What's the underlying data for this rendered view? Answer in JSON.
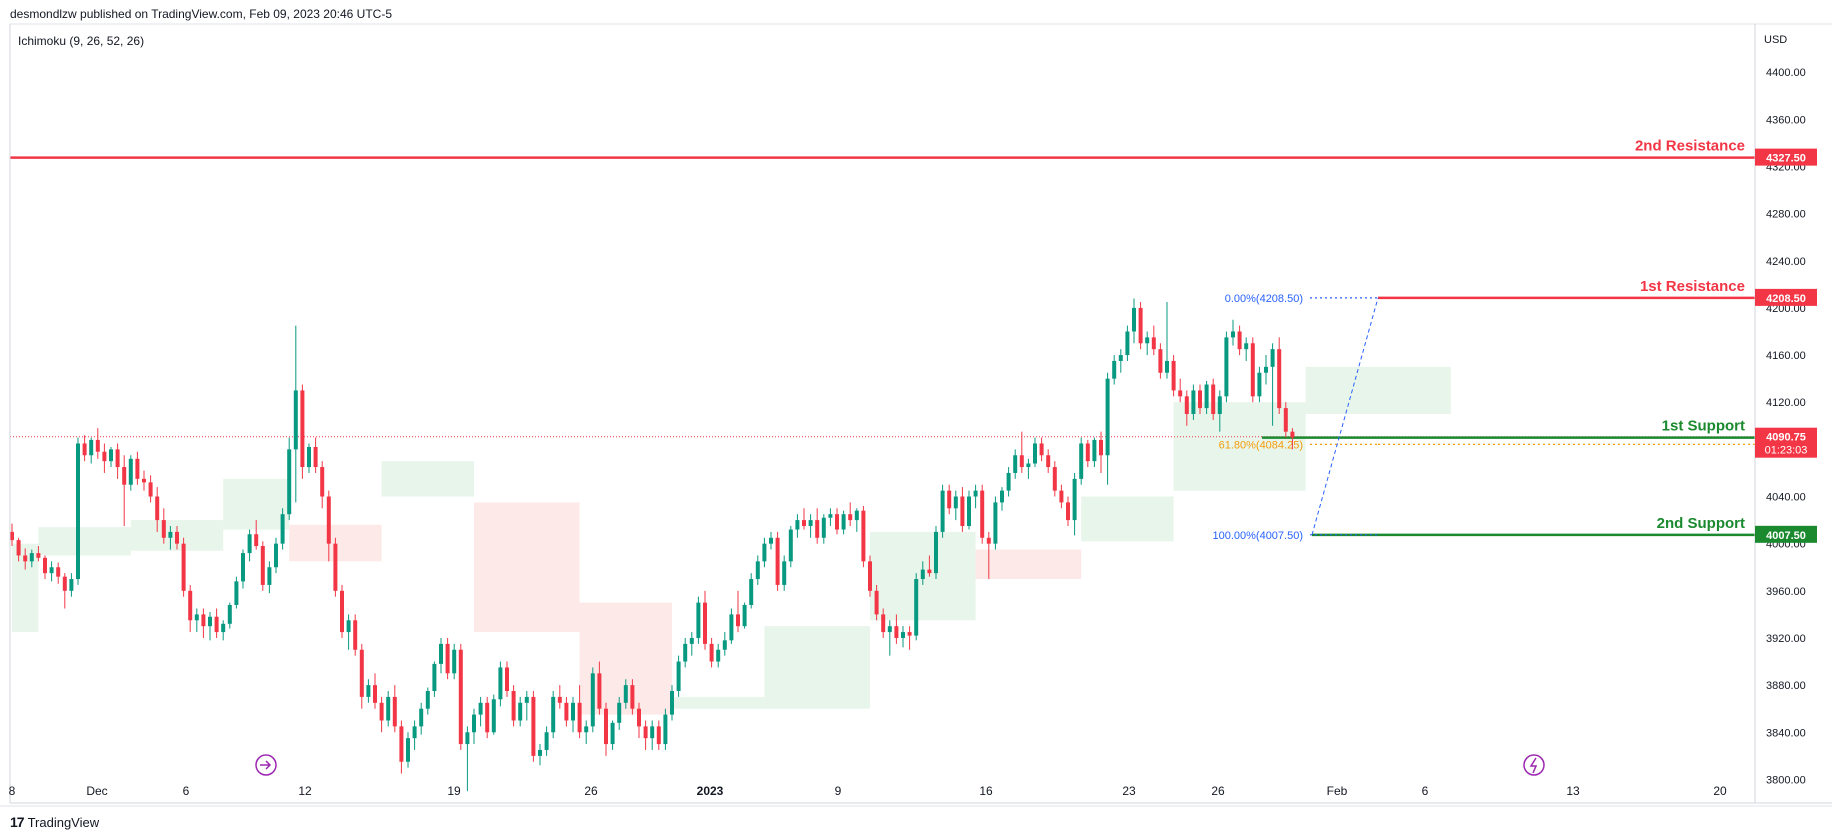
{
  "header": {
    "publisher": "desmondlzw published on TradingView.com, Feb 09, 2023 20:46 UTC-5",
    "indicator": "Ichimoku (9, 26, 52, 26)",
    "currency": "USD"
  },
  "footer": {
    "logo_mark": "17",
    "logo_text": "TradingView"
  },
  "colors": {
    "up": "#089981",
    "down": "#f23645",
    "resistance": "#f23645",
    "support": "#1b8a2f",
    "fib": "#2962ff",
    "fib_mid": "#f59d0b",
    "cloud_up": "#e4f3e6",
    "cloud_down": "#fde5e4"
  },
  "chart_data": {
    "type": "candlestick",
    "ylim": [
      3780,
      4440
    ],
    "y_ticks": [
      3800,
      3840,
      3880,
      3920,
      3960,
      4000,
      4040,
      4080,
      4120,
      4160,
      4200,
      4240,
      4280,
      4320,
      4360,
      4400
    ],
    "y_tick_labels": [
      "3800.00",
      "3840.00",
      "3880.00",
      "3920.00",
      "3960.00",
      "4000.00",
      "4040.00",
      "4080.00",
      "4120.00",
      "4160.00",
      "4200.00",
      "4240.00",
      "4280.00",
      "4320.00",
      "4360.00",
      "4400.00"
    ],
    "x_labels": [
      "8",
      "Dec",
      "6",
      "12",
      "19",
      "26",
      "2023",
      "9",
      "16",
      "23",
      "26",
      "Feb",
      "6",
      "13",
      "20"
    ],
    "levels": [
      {
        "name": "2nd Resistance",
        "value": 4327.5,
        "label": "4327.50",
        "kind": "resistance"
      },
      {
        "name": "1st Resistance",
        "value": 4208.5,
        "label": "4208.50",
        "kind": "resistance"
      },
      {
        "name": "1st Support",
        "value": 4090.0,
        "label": "4090.00",
        "kind": "support"
      },
      {
        "name": "2nd Support",
        "value": 4007.5,
        "label": "4007.50",
        "kind": "support"
      }
    ],
    "fibonacci": [
      {
        "label": "0.00%(4208.50)",
        "value": 4208.5
      },
      {
        "label": "61.80%(4084.25)",
        "value": 4084.25
      },
      {
        "label": "100.00%(4007.50)",
        "value": 4007.5
      }
    ],
    "last_price": {
      "value": 4090.75,
      "label": "4090.75",
      "countdown": "01:23:03"
    },
    "candles": [
      [
        4010,
        4017,
        3998,
        4003
      ],
      [
        4003,
        4005,
        3985,
        3990
      ],
      [
        3990,
        3996,
        3978,
        3985
      ],
      [
        3985,
        3995,
        3980,
        3992
      ],
      [
        3992,
        3998,
        3985,
        3988
      ],
      [
        3988,
        3990,
        3970,
        3975
      ],
      [
        3975,
        3985,
        3968,
        3980
      ],
      [
        3980,
        3984,
        3966,
        3972
      ],
      [
        3972,
        3975,
        3945,
        3960
      ],
      [
        3960,
        3975,
        3955,
        3970
      ],
      [
        3970,
        4090,
        3965,
        4085
      ],
      [
        4085,
        4092,
        4070,
        4075
      ],
      [
        4075,
        4090,
        4068,
        4088
      ],
      [
        4088,
        4098,
        4072,
        4078
      ],
      [
        4078,
        4085,
        4060,
        4070
      ],
      [
        4070,
        4082,
        4065,
        4080
      ],
      [
        4080,
        4085,
        4055,
        4065
      ],
      [
        4065,
        4075,
        4015,
        4050
      ],
      [
        4050,
        4075,
        4045,
        4072
      ],
      [
        4072,
        4078,
        4050,
        4055
      ],
      [
        4055,
        4062,
        4045,
        4052
      ],
      [
        4052,
        4058,
        4035,
        4040
      ],
      [
        4040,
        4048,
        4010,
        4020
      ],
      [
        4020,
        4030,
        4000,
        4005
      ],
      [
        4005,
        4015,
        3995,
        4010
      ],
      [
        4010,
        4015,
        3995,
        4000
      ],
      [
        4000,
        4005,
        3955,
        3960
      ],
      [
        3960,
        3965,
        3925,
        3935
      ],
      [
        3935,
        3945,
        3925,
        3940
      ],
      [
        3940,
        3945,
        3920,
        3930
      ],
      [
        3930,
        3942,
        3918,
        3938
      ],
      [
        3938,
        3945,
        3920,
        3925
      ],
      [
        3925,
        3935,
        3918,
        3932
      ],
      [
        3932,
        3950,
        3928,
        3948
      ],
      [
        3948,
        3972,
        3945,
        3968
      ],
      [
        3968,
        3995,
        3962,
        3992
      ],
      [
        3992,
        4012,
        3985,
        4008
      ],
      [
        4008,
        4020,
        3995,
        3998
      ],
      [
        3998,
        4002,
        3960,
        3965
      ],
      [
        3965,
        3985,
        3958,
        3980
      ],
      [
        3980,
        4005,
        3975,
        4000
      ],
      [
        4000,
        4030,
        3995,
        4025
      ],
      [
        4025,
        4090,
        4020,
        4080
      ],
      [
        4080,
        4185,
        4035,
        4130
      ],
      [
        4130,
        4135,
        4055,
        4065
      ],
      [
        4065,
        4085,
        4060,
        4082
      ],
      [
        4082,
        4090,
        4060,
        4065
      ],
      [
        4065,
        4070,
        4030,
        4040
      ],
      [
        4040,
        4045,
        3985,
        4000
      ],
      [
        4000,
        4005,
        3955,
        3960
      ],
      [
        3960,
        3965,
        3920,
        3925
      ],
      [
        3925,
        3940,
        3910,
        3935
      ],
      [
        3935,
        3940,
        3905,
        3910
      ],
      [
        3910,
        3915,
        3860,
        3870
      ],
      [
        3870,
        3885,
        3865,
        3880
      ],
      [
        3880,
        3890,
        3860,
        3865
      ],
      [
        3865,
        3870,
        3840,
        3850
      ],
      [
        3850,
        3875,
        3845,
        3870
      ],
      [
        3870,
        3880,
        3840,
        3845
      ],
      [
        3845,
        3850,
        3805,
        3815
      ],
      [
        3815,
        3840,
        3810,
        3835
      ],
      [
        3835,
        3850,
        3825,
        3845
      ],
      [
        3845,
        3865,
        3838,
        3860
      ],
      [
        3860,
        3878,
        3855,
        3875
      ],
      [
        3875,
        3900,
        3870,
        3898
      ],
      [
        3898,
        3920,
        3890,
        3915
      ],
      [
        3915,
        3920,
        3885,
        3890
      ],
      [
        3890,
        3915,
        3885,
        3910
      ],
      [
        3910,
        3915,
        3825,
        3830
      ],
      [
        3830,
        3845,
        3790,
        3840
      ],
      [
        3840,
        3860,
        3830,
        3855
      ],
      [
        3855,
        3870,
        3845,
        3865
      ],
      [
        3865,
        3870,
        3835,
        3840
      ],
      [
        3840,
        3872,
        3838,
        3868
      ],
      [
        3868,
        3900,
        3862,
        3895
      ],
      [
        3895,
        3900,
        3870,
        3875
      ],
      [
        3875,
        3880,
        3845,
        3850
      ],
      [
        3850,
        3870,
        3845,
        3865
      ],
      [
        3865,
        3875,
        3850,
        3870
      ],
      [
        3870,
        3875,
        3815,
        3820
      ],
      [
        3820,
        3830,
        3812,
        3825
      ],
      [
        3825,
        3845,
        3820,
        3840
      ],
      [
        3840,
        3875,
        3835,
        3870
      ],
      [
        3870,
        3880,
        3860,
        3865
      ],
      [
        3865,
        3870,
        3845,
        3850
      ],
      [
        3850,
        3870,
        3840,
        3865
      ],
      [
        3865,
        3880,
        3835,
        3840
      ],
      [
        3840,
        3850,
        3830,
        3845
      ],
      [
        3845,
        3895,
        3840,
        3890
      ],
      [
        3890,
        3900,
        3855,
        3860
      ],
      [
        3860,
        3865,
        3820,
        3830
      ],
      [
        3830,
        3850,
        3825,
        3848
      ],
      [
        3848,
        3870,
        3842,
        3865
      ],
      [
        3865,
        3885,
        3860,
        3880
      ],
      [
        3880,
        3885,
        3855,
        3860
      ],
      [
        3860,
        3865,
        3835,
        3845
      ],
      [
        3845,
        3850,
        3825,
        3835
      ],
      [
        3835,
        3850,
        3825,
        3845
      ],
      [
        3845,
        3850,
        3825,
        3830
      ],
      [
        3830,
        3860,
        3825,
        3855
      ],
      [
        3855,
        3880,
        3850,
        3875
      ],
      [
        3875,
        3905,
        3870,
        3900
      ],
      [
        3900,
        3920,
        3895,
        3915
      ],
      [
        3915,
        3925,
        3905,
        3920
      ],
      [
        3920,
        3955,
        3915,
        3950
      ],
      [
        3950,
        3960,
        3910,
        3915
      ],
      [
        3915,
        3920,
        3895,
        3900
      ],
      [
        3900,
        3915,
        3895,
        3910
      ],
      [
        3910,
        3925,
        3905,
        3918
      ],
      [
        3918,
        3945,
        3915,
        3940
      ],
      [
        3940,
        3960,
        3925,
        3930
      ],
      [
        3930,
        3950,
        3928,
        3948
      ],
      [
        3948,
        3975,
        3945,
        3970
      ],
      [
        3970,
        3990,
        3965,
        3985
      ],
      [
        3985,
        4005,
        3980,
        4000
      ],
      [
        4000,
        4010,
        3995,
        4005
      ],
      [
        4005,
        4010,
        3960,
        3965
      ],
      [
        3965,
        3990,
        3960,
        3985
      ],
      [
        3985,
        4015,
        3980,
        4012
      ],
      [
        4012,
        4025,
        4005,
        4020
      ],
      [
        4020,
        4030,
        4012,
        4015
      ],
      [
        4015,
        4025,
        4005,
        4020
      ],
      [
        4020,
        4030,
        4000,
        4005
      ],
      [
        4005,
        4025,
        4000,
        4022
      ],
      [
        4022,
        4030,
        4015,
        4025
      ],
      [
        4025,
        4030,
        4008,
        4012
      ],
      [
        4012,
        4028,
        4008,
        4025
      ],
      [
        4025,
        4035,
        4015,
        4020
      ],
      [
        4020,
        4030,
        4010,
        4028
      ],
      [
        4028,
        4032,
        3980,
        3985
      ],
      [
        3985,
        3990,
        3955,
        3960
      ],
      [
        3960,
        3965,
        3935,
        3940
      ],
      [
        3940,
        3945,
        3920,
        3925
      ],
      [
        3925,
        3935,
        3905,
        3930
      ],
      [
        3930,
        3940,
        3915,
        3920
      ],
      [
        3920,
        3930,
        3912,
        3925
      ],
      [
        3925,
        3930,
        3910,
        3922
      ],
      [
        3922,
        3975,
        3918,
        3970
      ],
      [
        3970,
        3985,
        3965,
        3978
      ],
      [
        3978,
        3990,
        3972,
        3975
      ],
      [
        3975,
        4015,
        3970,
        4010
      ],
      [
        4010,
        4050,
        4005,
        4045
      ],
      [
        4045,
        4050,
        4025,
        4030
      ],
      [
        4030,
        4045,
        4020,
        4040
      ],
      [
        4040,
        4048,
        4010,
        4015
      ],
      [
        4015,
        4045,
        4012,
        4040
      ],
      [
        4040,
        4050,
        4030,
        4045
      ],
      [
        4045,
        4050,
        4000,
        4005
      ],
      [
        4005,
        4010,
        3970,
        4000
      ],
      [
        4000,
        4040,
        3995,
        4035
      ],
      [
        4035,
        4048,
        4028,
        4045
      ],
      [
        4045,
        4065,
        4040,
        4060
      ],
      [
        4060,
        4080,
        4055,
        4075
      ],
      [
        4075,
        4095,
        4060,
        4065
      ],
      [
        4065,
        4072,
        4055,
        4068
      ],
      [
        4068,
        4090,
        4065,
        4085
      ],
      [
        4085,
        4090,
        4070,
        4075
      ],
      [
        4075,
        4080,
        4060,
        4065
      ],
      [
        4065,
        4070,
        4040,
        4045
      ],
      [
        4045,
        4050,
        4030,
        4035
      ],
      [
        4035,
        4040,
        4015,
        4020
      ],
      [
        4020,
        4060,
        4007,
        4055
      ],
      [
        4055,
        4090,
        4050,
        4085
      ],
      [
        4085,
        4088,
        4065,
        4070
      ],
      [
        4070,
        4090,
        4065,
        4088
      ],
      [
        4088,
        4095,
        4060,
        4075
      ],
      [
        4075,
        4145,
        4050,
        4140
      ],
      [
        4140,
        4160,
        4135,
        4155
      ],
      [
        4155,
        4165,
        4145,
        4160
      ],
      [
        4160,
        4185,
        4155,
        4180
      ],
      [
        4180,
        4208,
        4170,
        4200
      ],
      [
        4200,
        4205,
        4165,
        4170
      ],
      [
        4170,
        4180,
        4160,
        4175
      ],
      [
        4175,
        4185,
        4160,
        4165
      ],
      [
        4165,
        4170,
        4140,
        4145
      ],
      [
        4145,
        4205,
        4140,
        4155
      ],
      [
        4155,
        4160,
        4125,
        4130
      ],
      [
        4130,
        4140,
        4120,
        4125
      ],
      [
        4125,
        4130,
        4100,
        4110
      ],
      [
        4110,
        4135,
        4105,
        4130
      ],
      [
        4130,
        4135,
        4110,
        4115
      ],
      [
        4115,
        4138,
        4110,
        4135
      ],
      [
        4135,
        4140,
        4105,
        4110
      ],
      [
        4110,
        4130,
        4095,
        4125
      ],
      [
        4125,
        4180,
        4120,
        4175
      ],
      [
        4175,
        4190,
        4168,
        4180
      ],
      [
        4180,
        4185,
        4160,
        4165
      ],
      [
        4165,
        4175,
        4155,
        4170
      ],
      [
        4170,
        4175,
        4120,
        4125
      ],
      [
        4125,
        4150,
        4120,
        4145
      ],
      [
        4145,
        4160,
        4135,
        4150
      ],
      [
        4150,
        4170,
        4100,
        4165
      ],
      [
        4165,
        4175,
        4110,
        4115
      ],
      [
        4115,
        4120,
        4090,
        4095
      ],
      [
        4095,
        4098,
        4080,
        4090
      ]
    ],
    "cloud": [
      {
        "i0": 0,
        "i1": 4,
        "top": 4000,
        "bot": 3925,
        "color": "up"
      },
      {
        "i0": 4,
        "i1": 18,
        "top": 4014,
        "bot": 3990,
        "color": "up"
      },
      {
        "i0": 18,
        "i1": 32,
        "top": 4020,
        "bot": 3994,
        "color": "up"
      },
      {
        "i0": 32,
        "i1": 42,
        "top": 4055,
        "bot": 4012,
        "color": "up"
      },
      {
        "i0": 42,
        "i1": 56,
        "top": 4016,
        "bot": 3985,
        "color": "down"
      },
      {
        "i0": 56,
        "i1": 70,
        "top": 4070,
        "bot": 4040,
        "color": "up"
      },
      {
        "i0": 70,
        "i1": 86,
        "top": 4035,
        "bot": 3925,
        "color": "down"
      },
      {
        "i0": 86,
        "i1": 100,
        "top": 3950,
        "bot": 3855,
        "color": "down"
      },
      {
        "i0": 100,
        "i1": 114,
        "top": 3870,
        "bot": 3860,
        "color": "up"
      },
      {
        "i0": 114,
        "i1": 130,
        "top": 3930,
        "bot": 3860,
        "color": "up"
      },
      {
        "i0": 130,
        "i1": 146,
        "top": 4010,
        "bot": 3935,
        "color": "up"
      },
      {
        "i0": 146,
        "i1": 162,
        "top": 3995,
        "bot": 3970,
        "color": "down"
      },
      {
        "i0": 162,
        "i1": 176,
        "top": 4040,
        "bot": 4002,
        "color": "up"
      },
      {
        "i0": 176,
        "i1": 196,
        "top": 4120,
        "bot": 4045,
        "color": "up"
      },
      {
        "i0": 196,
        "i1": 218,
        "top": 4150,
        "bot": 4110,
        "color": "up"
      }
    ]
  }
}
